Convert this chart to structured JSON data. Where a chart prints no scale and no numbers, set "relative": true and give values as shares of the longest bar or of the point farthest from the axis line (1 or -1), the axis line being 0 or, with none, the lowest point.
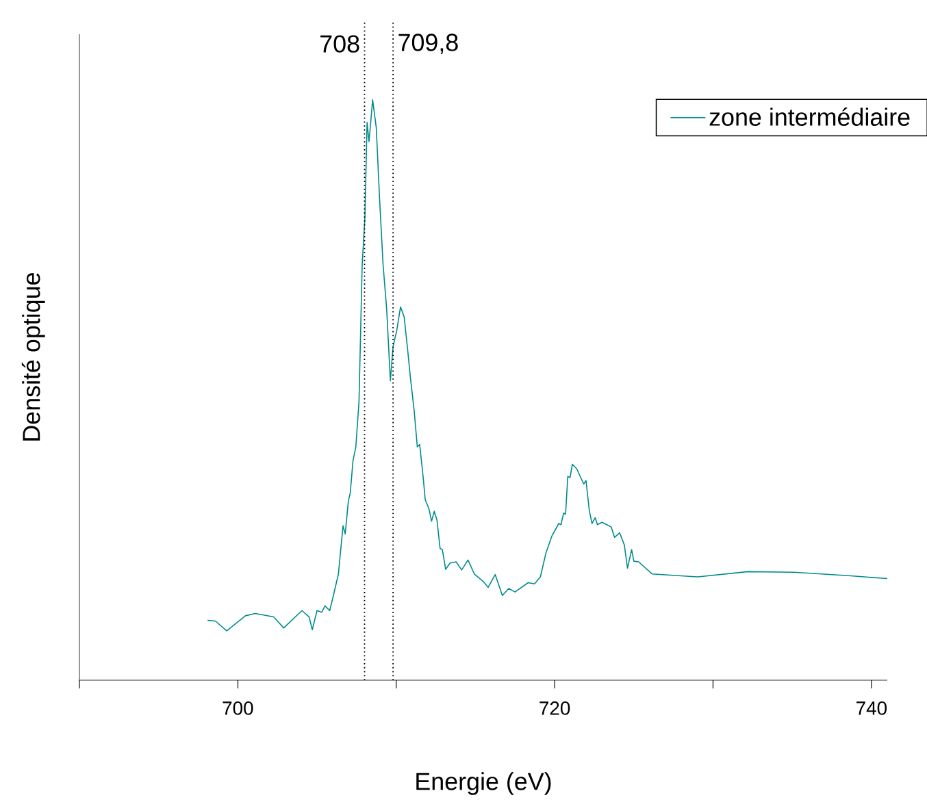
{
  "chart_data": {
    "type": "line",
    "xlabel": "Energie (eV)",
    "ylabel": "Densité optique",
    "relative": true,
    "legend": "top right",
    "xlim": [
      690,
      741
    ],
    "xticks": [
      {
        "value": 690,
        "label": null
      },
      700,
      {
        "value": 710,
        "label": null
      },
      720,
      {
        "value": 730,
        "label": null
      },
      740
    ],
    "ref_lines": [
      {
        "axis": "x",
        "value": 708,
        "label": "708",
        "color": "#000000",
        "line_style": "dotted"
      },
      {
        "axis": "x",
        "value": 709.8,
        "label": "709,8",
        "color": "#000000",
        "line_style": "dotted"
      }
    ],
    "x": [
      698.09,
      698.58,
      699.3,
      700.48,
      701.1,
      702.26,
      702.9,
      704.05,
      704.5,
      704.7,
      705.0,
      705.3,
      705.5,
      705.8,
      706.07,
      706.35,
      706.64,
      706.78,
      706.98,
      707.1,
      707.27,
      707.45,
      707.65,
      707.85,
      708.02,
      708.16,
      708.28,
      708.37,
      708.51,
      708.63,
      708.74,
      708.94,
      709.17,
      709.4,
      709.63,
      709.8,
      710.03,
      710.27,
      710.5,
      710.7,
      710.9,
      711.13,
      711.33,
      711.48,
      711.71,
      711.83,
      712.06,
      712.23,
      712.4,
      712.57,
      712.77,
      712.91,
      713.12,
      713.4,
      713.78,
      714.13,
      714.53,
      714.93,
      715.5,
      715.8,
      716.25,
      716.7,
      717.1,
      717.5,
      718.33,
      718.73,
      719.1,
      719.45,
      719.82,
      720.26,
      720.4,
      720.57,
      720.69,
      720.83,
      720.97,
      721.12,
      721.4,
      721.7,
      721.84,
      721.98,
      722.19,
      722.36,
      722.56,
      722.7,
      722.99,
      723.29,
      723.57,
      723.78,
      724.1,
      724.4,
      724.6,
      724.86,
      725.0,
      725.3,
      726.16,
      729.04,
      732.2,
      735.1,
      738.56,
      741.0
    ],
    "series": [
      {
        "name": "zone intermédiaire",
        "color": "#008b8b",
        "values": [
          0.103,
          0.102,
          0.085,
          0.111,
          0.115,
          0.109,
          0.09,
          0.12,
          0.109,
          0.087,
          0.12,
          0.117,
          0.128,
          0.12,
          0.15,
          0.183,
          0.266,
          0.252,
          0.309,
          0.323,
          0.378,
          0.402,
          0.48,
          0.716,
          0.795,
          0.961,
          0.928,
          0.955,
          1,
          0.975,
          0.952,
          0.834,
          0.716,
          0.638,
          0.516,
          0.575,
          0.602,
          0.643,
          0.626,
          0.575,
          0.52,
          0.465,
          0.402,
          0.406,
          0.347,
          0.311,
          0.296,
          0.274,
          0.291,
          0.276,
          0.227,
          0.225,
          0.191,
          0.202,
          0.204,
          0.19,
          0.207,
          0.183,
          0.17,
          0.16,
          0.182,
          0.146,
          0.158,
          0.152,
          0.168,
          0.166,
          0.178,
          0.219,
          0.248,
          0.27,
          0.268,
          0.288,
          0.286,
          0.351,
          0.349,
          0.372,
          0.364,
          0.346,
          0.338,
          0.344,
          0.292,
          0.27,
          0.28,
          0.268,
          0.272,
          0.268,
          0.264,
          0.246,
          0.254,
          0.233,
          0.193,
          0.225,
          0.205,
          0.204,
          0.183,
          0.178,
          0.187,
          0.186,
          0.18,
          0.175
        ]
      }
    ]
  }
}
